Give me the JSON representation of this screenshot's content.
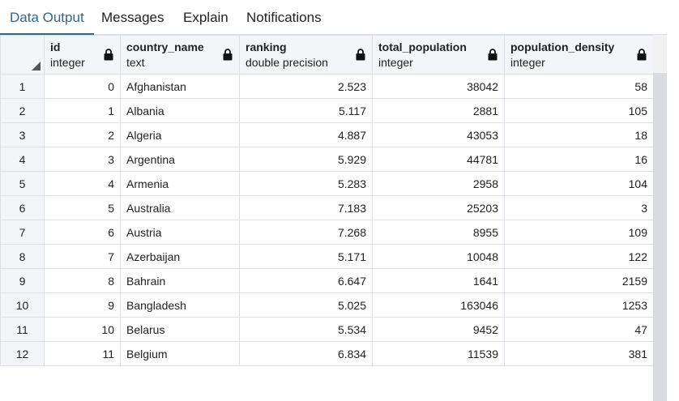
{
  "tabs": [
    {
      "label": "Data Output",
      "active": true
    },
    {
      "label": "Messages",
      "active": false
    },
    {
      "label": "Explain",
      "active": false
    },
    {
      "label": "Notifications",
      "active": false
    }
  ],
  "columns": [
    {
      "name": "id",
      "type": "integer",
      "icon": "lock-icon"
    },
    {
      "name": "country_name",
      "type": "text",
      "icon": "lock-icon"
    },
    {
      "name": "ranking",
      "type": "double precision",
      "icon": "lock-icon"
    },
    {
      "name": "total_population",
      "type": "integer",
      "icon": "lock-icon"
    },
    {
      "name": "population_density",
      "type": "integer",
      "icon": "lock-icon"
    }
  ],
  "rows": [
    {
      "n": "1",
      "cells": [
        "0",
        "Afghanistan",
        "2.523",
        "38042",
        "58"
      ]
    },
    {
      "n": "2",
      "cells": [
        "1",
        "Albania",
        "5.117",
        "2881",
        "105"
      ]
    },
    {
      "n": "3",
      "cells": [
        "2",
        "Algeria",
        "4.887",
        "43053",
        "18"
      ]
    },
    {
      "n": "4",
      "cells": [
        "3",
        "Argentina",
        "5.929",
        "44781",
        "16"
      ]
    },
    {
      "n": "5",
      "cells": [
        "4",
        "Armenia",
        "5.283",
        "2958",
        "104"
      ]
    },
    {
      "n": "6",
      "cells": [
        "5",
        "Australia",
        "7.183",
        "25203",
        "3"
      ]
    },
    {
      "n": "7",
      "cells": [
        "6",
        "Austria",
        "7.268",
        "8955",
        "109"
      ]
    },
    {
      "n": "8",
      "cells": [
        "7",
        "Azerbaijan",
        "5.171",
        "10048",
        "122"
      ]
    },
    {
      "n": "9",
      "cells": [
        "8",
        "Bahrain",
        "6.647",
        "1641",
        "2159"
      ]
    },
    {
      "n": "10",
      "cells": [
        "9",
        "Bangladesh",
        "5.025",
        "163046",
        "1253"
      ]
    },
    {
      "n": "11",
      "cells": [
        "10",
        "Belarus",
        "5.534",
        "9452",
        "47"
      ]
    },
    {
      "n": "12",
      "cells": [
        "11",
        "Belgium",
        "6.834",
        "11539",
        "381"
      ]
    }
  ],
  "colors": {
    "accent": "#326690",
    "header_bg": "#f3f5f8",
    "border": "#dde0e6"
  }
}
